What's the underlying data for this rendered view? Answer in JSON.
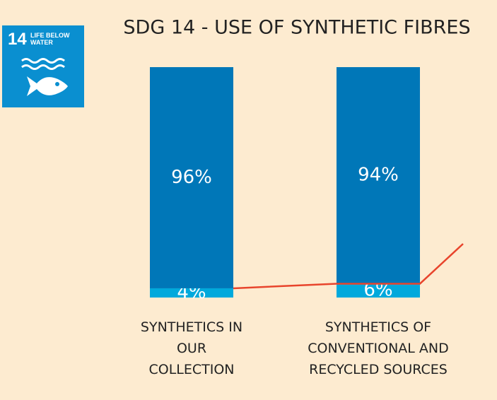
{
  "icon": {
    "number": "14",
    "label": "LIFE BELOW WATER"
  },
  "chart_data": {
    "type": "bar",
    "stacked": true,
    "title": "SDG 14 - USE OF SYNTHETIC FIBRES",
    "categories": [
      "SYNTHETICS IN OUR COLLECTION",
      "SYNTHETICS OF CONVENTIONAL AND RECYCLED SOURCES"
    ],
    "series": [
      {
        "color": "#00a9dc",
        "values": [
          4,
          6
        ],
        "value_labels": [
          "4%",
          "6%"
        ]
      },
      {
        "color": "#0077b8",
        "values": [
          96,
          94
        ],
        "value_labels": [
          "96%",
          "94%"
        ]
      }
    ],
    "ylim": [
      0,
      100
    ],
    "connector_color": "#e8442c"
  }
}
